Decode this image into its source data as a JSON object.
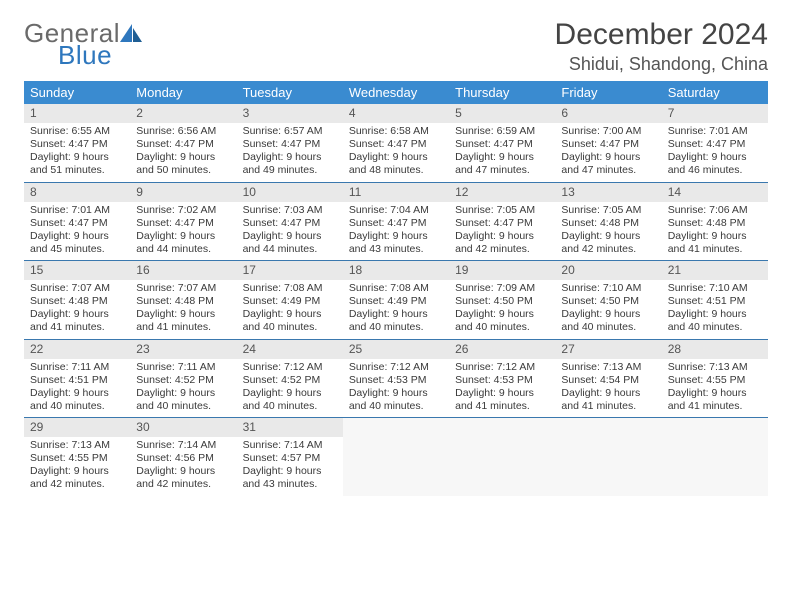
{
  "brand": {
    "part1": "General",
    "part2": "Blue"
  },
  "title": "December 2024",
  "location": "Shidui, Shandong, China",
  "colors": {
    "header_bg": "#3a8bd0",
    "header_text": "#ffffff",
    "row_divider": "#3a78ae",
    "daynum_bg": "#e9e9e9",
    "brand_gray": "#6a6a6a",
    "brand_blue": "#2e77bd"
  },
  "day_headers": [
    "Sunday",
    "Monday",
    "Tuesday",
    "Wednesday",
    "Thursday",
    "Friday",
    "Saturday"
  ],
  "weeks": [
    [
      {
        "n": "1",
        "sr": "6:55 AM",
        "ss": "4:47 PM",
        "dl": "9 hours and 51 minutes."
      },
      {
        "n": "2",
        "sr": "6:56 AM",
        "ss": "4:47 PM",
        "dl": "9 hours and 50 minutes."
      },
      {
        "n": "3",
        "sr": "6:57 AM",
        "ss": "4:47 PM",
        "dl": "9 hours and 49 minutes."
      },
      {
        "n": "4",
        "sr": "6:58 AM",
        "ss": "4:47 PM",
        "dl": "9 hours and 48 minutes."
      },
      {
        "n": "5",
        "sr": "6:59 AM",
        "ss": "4:47 PM",
        "dl": "9 hours and 47 minutes."
      },
      {
        "n": "6",
        "sr": "7:00 AM",
        "ss": "4:47 PM",
        "dl": "9 hours and 47 minutes."
      },
      {
        "n": "7",
        "sr": "7:01 AM",
        "ss": "4:47 PM",
        "dl": "9 hours and 46 minutes."
      }
    ],
    [
      {
        "n": "8",
        "sr": "7:01 AM",
        "ss": "4:47 PM",
        "dl": "9 hours and 45 minutes."
      },
      {
        "n": "9",
        "sr": "7:02 AM",
        "ss": "4:47 PM",
        "dl": "9 hours and 44 minutes."
      },
      {
        "n": "10",
        "sr": "7:03 AM",
        "ss": "4:47 PM",
        "dl": "9 hours and 44 minutes."
      },
      {
        "n": "11",
        "sr": "7:04 AM",
        "ss": "4:47 PM",
        "dl": "9 hours and 43 minutes."
      },
      {
        "n": "12",
        "sr": "7:05 AM",
        "ss": "4:47 PM",
        "dl": "9 hours and 42 minutes."
      },
      {
        "n": "13",
        "sr": "7:05 AM",
        "ss": "4:48 PM",
        "dl": "9 hours and 42 minutes."
      },
      {
        "n": "14",
        "sr": "7:06 AM",
        "ss": "4:48 PM",
        "dl": "9 hours and 41 minutes."
      }
    ],
    [
      {
        "n": "15",
        "sr": "7:07 AM",
        "ss": "4:48 PM",
        "dl": "9 hours and 41 minutes."
      },
      {
        "n": "16",
        "sr": "7:07 AM",
        "ss": "4:48 PM",
        "dl": "9 hours and 41 minutes."
      },
      {
        "n": "17",
        "sr": "7:08 AM",
        "ss": "4:49 PM",
        "dl": "9 hours and 40 minutes."
      },
      {
        "n": "18",
        "sr": "7:08 AM",
        "ss": "4:49 PM",
        "dl": "9 hours and 40 minutes."
      },
      {
        "n": "19",
        "sr": "7:09 AM",
        "ss": "4:50 PM",
        "dl": "9 hours and 40 minutes."
      },
      {
        "n": "20",
        "sr": "7:10 AM",
        "ss": "4:50 PM",
        "dl": "9 hours and 40 minutes."
      },
      {
        "n": "21",
        "sr": "7:10 AM",
        "ss": "4:51 PM",
        "dl": "9 hours and 40 minutes."
      }
    ],
    [
      {
        "n": "22",
        "sr": "7:11 AM",
        "ss": "4:51 PM",
        "dl": "9 hours and 40 minutes."
      },
      {
        "n": "23",
        "sr": "7:11 AM",
        "ss": "4:52 PM",
        "dl": "9 hours and 40 minutes."
      },
      {
        "n": "24",
        "sr": "7:12 AM",
        "ss": "4:52 PM",
        "dl": "9 hours and 40 minutes."
      },
      {
        "n": "25",
        "sr": "7:12 AM",
        "ss": "4:53 PM",
        "dl": "9 hours and 40 minutes."
      },
      {
        "n": "26",
        "sr": "7:12 AM",
        "ss": "4:53 PM",
        "dl": "9 hours and 41 minutes."
      },
      {
        "n": "27",
        "sr": "7:13 AM",
        "ss": "4:54 PM",
        "dl": "9 hours and 41 minutes."
      },
      {
        "n": "28",
        "sr": "7:13 AM",
        "ss": "4:55 PM",
        "dl": "9 hours and 41 minutes."
      }
    ],
    [
      {
        "n": "29",
        "sr": "7:13 AM",
        "ss": "4:55 PM",
        "dl": "9 hours and 42 minutes."
      },
      {
        "n": "30",
        "sr": "7:14 AM",
        "ss": "4:56 PM",
        "dl": "9 hours and 42 minutes."
      },
      {
        "n": "31",
        "sr": "7:14 AM",
        "ss": "4:57 PM",
        "dl": "9 hours and 43 minutes."
      },
      null,
      null,
      null,
      null
    ]
  ],
  "labels": {
    "sunrise": "Sunrise:",
    "sunset": "Sunset:",
    "daylight": "Daylight:"
  }
}
